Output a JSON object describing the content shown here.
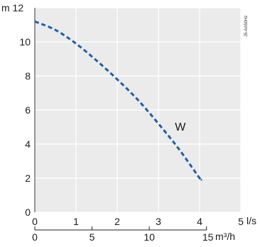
{
  "chart_data": {
    "type": "line",
    "x_unit": "l/s",
    "x2_unit": "m³/h",
    "y_unit": "m",
    "xlim": [
      0,
      5
    ],
    "ylim": [
      0,
      12
    ],
    "x2lim": [
      0,
      18
    ],
    "x_ticks": [
      "0",
      "1",
      "2",
      "3",
      "4",
      "5"
    ],
    "x2_ticks": [
      "0",
      "5",
      "10",
      "15"
    ],
    "y_ticks": [
      "0",
      "2",
      "4",
      "6",
      "8",
      "10",
      "12"
    ],
    "y_top_label": "m 12",
    "grid": true,
    "code_label": "J5-AA50Hz",
    "series": [
      {
        "name": "W",
        "color": "#1f5fa8",
        "x": [
          0,
          0.5,
          1.0,
          1.5,
          2.0,
          2.5,
          3.0,
          3.5,
          4.0,
          4.05
        ],
        "y": [
          11.2,
          10.7,
          9.9,
          8.9,
          7.8,
          6.6,
          5.2,
          3.7,
          2.0,
          1.9
        ]
      }
    ]
  }
}
